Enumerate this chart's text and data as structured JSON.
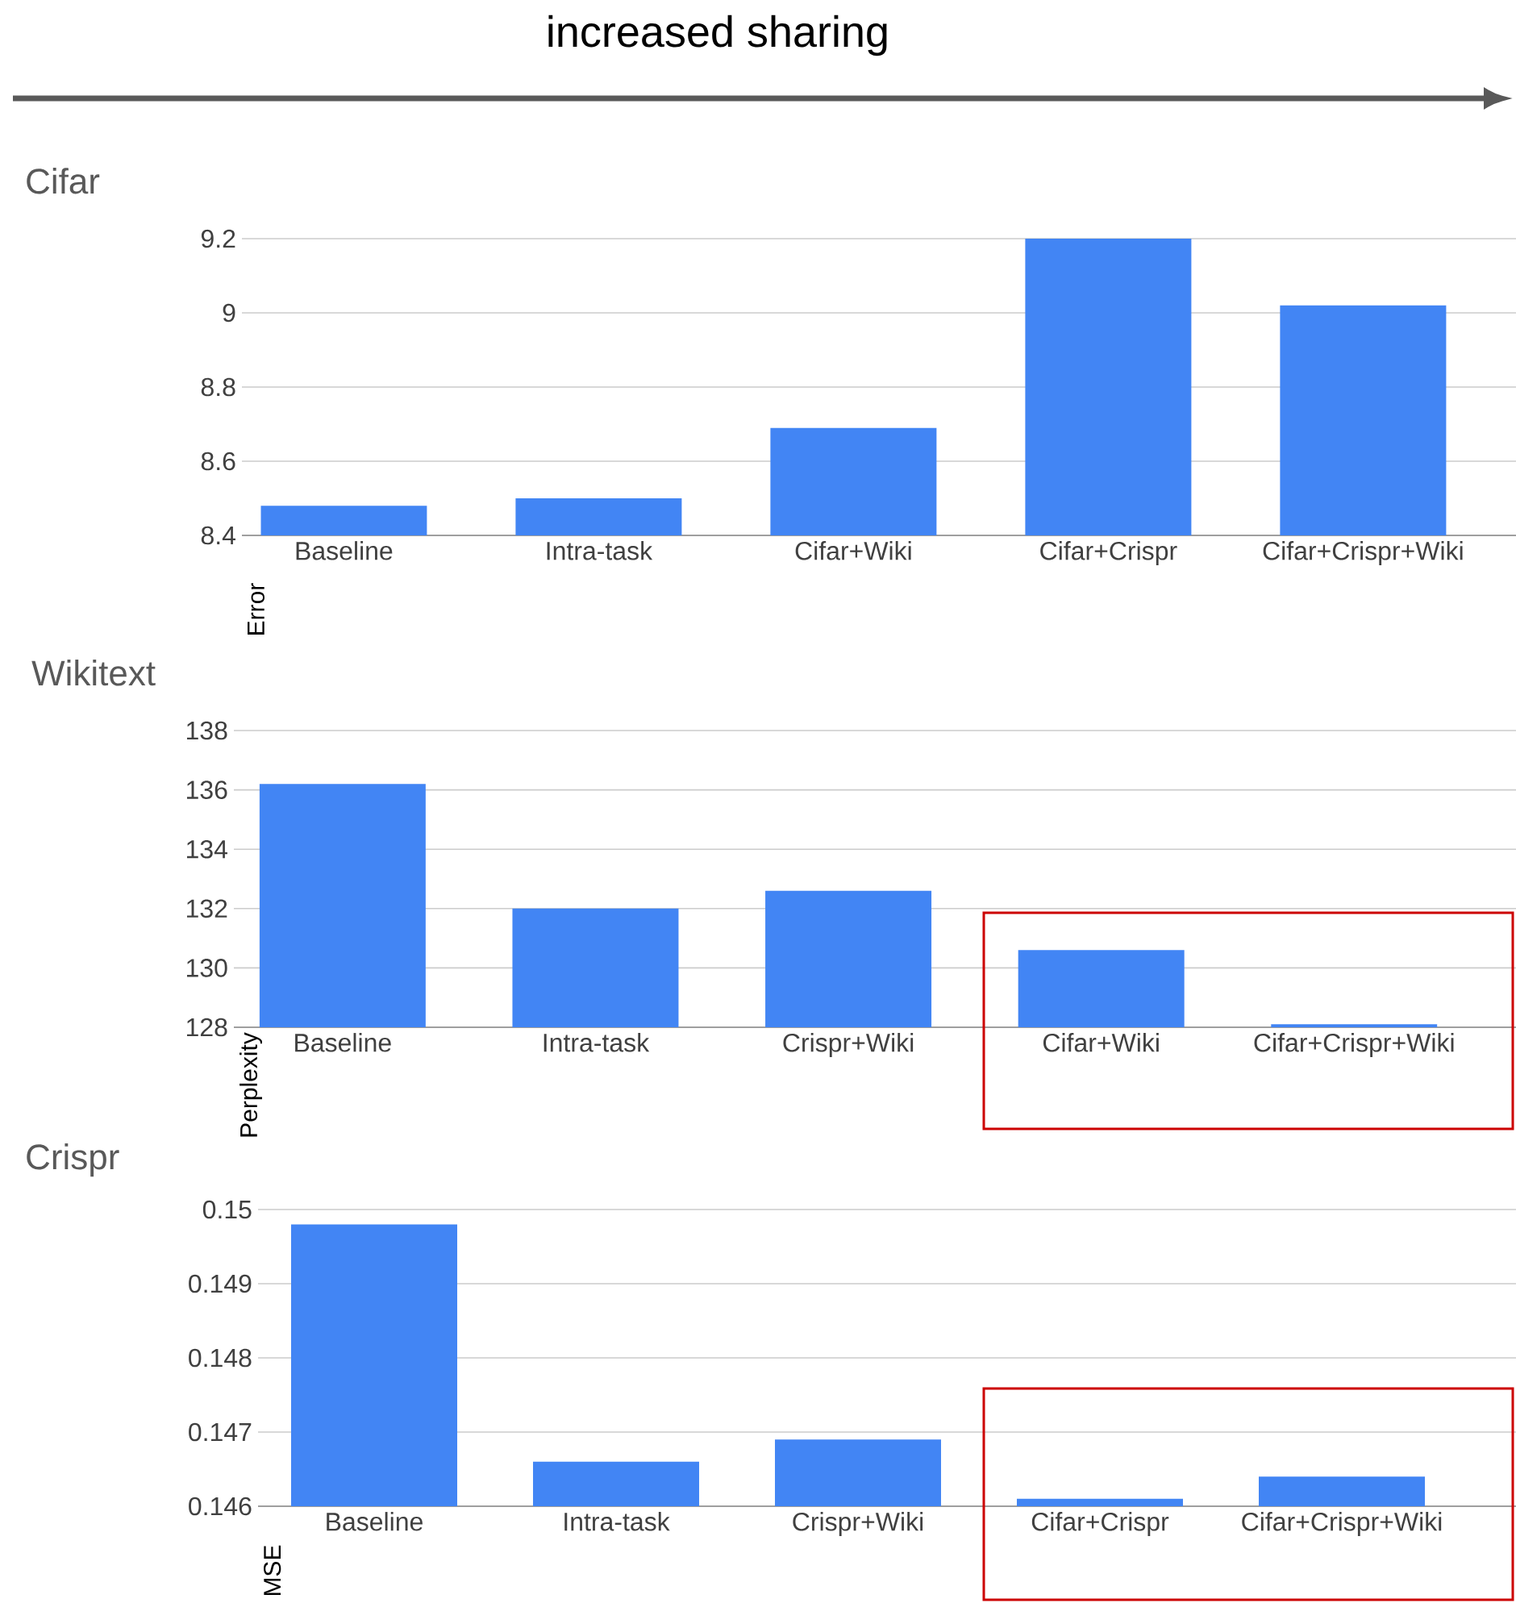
{
  "chart_data": [
    {
      "type": "bar",
      "title": "Cifar",
      "ylabel": "Error",
      "annotations": [
        "increased sharing"
      ],
      "categories": [
        "Baseline",
        "Intra-task",
        "Cifar+Wiki",
        "Cifar+Crispr",
        "Cifar+Crispr+Wiki"
      ],
      "values": [
        8.48,
        8.5,
        8.69,
        9.2,
        9.02
      ],
      "color": "#4285f4",
      "ylim": [
        8.4,
        9.2
      ],
      "yticks": [
        8.4,
        8.6,
        8.8,
        9,
        9.2
      ],
      "grid": "y"
    },
    {
      "type": "bar",
      "title": "Wikitext",
      "ylabel": "Perplexity",
      "categories": [
        "Baseline",
        "Intra-task",
        "Crispr+Wiki",
        "Cifar+Wiki",
        "Cifar+Crispr+Wiki"
      ],
      "values": [
        136.2,
        132.0,
        132.6,
        130.6,
        128.1
      ],
      "color": "#4285f4",
      "ylim": [
        128,
        138
      ],
      "yticks": [
        128,
        130,
        132,
        134,
        136,
        138
      ],
      "grid": "y"
    },
    {
      "type": "bar",
      "title": "Crispr",
      "ylabel": "MSE",
      "categories": [
        "Baseline",
        "Intra-task",
        "Crispr+Wiki",
        "Cifar+Crispr",
        "Cifar+Crispr+Wiki"
      ],
      "values": [
        0.1498,
        0.1466,
        0.1469,
        0.1461,
        0.1464
      ],
      "color": "#4285f4",
      "ylim": [
        0.146,
        0.15
      ],
      "yticks": [
        0.146,
        0.147,
        0.148,
        0.149,
        0.15
      ],
      "grid": "y"
    }
  ]
}
